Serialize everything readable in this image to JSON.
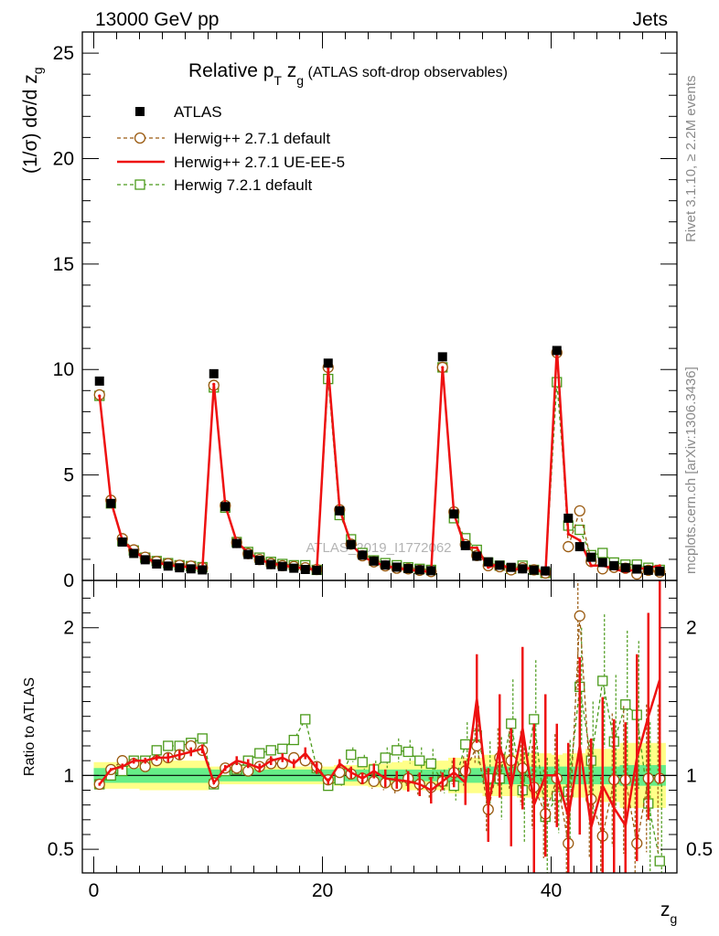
{
  "header": {
    "left": "13000 GeV pp",
    "right": "Jets"
  },
  "title": {
    "main": "Relative p",
    "sub_t": "T",
    "mid": " z",
    "sub_g": "g",
    "tail": " (ATLAS soft-drop observables)"
  },
  "side_labels": {
    "rivet": "Rivet 3.1.10, ≥ 2.2M events",
    "mcplots": "mcplots.cern.ch [arXiv:1306.3436]"
  },
  "watermark": "ATLAS_2019_I1772062",
  "y_label_main": "(1/σ) dσ/d z",
  "y_label_main_sub": "g",
  "y_label_ratio": "Ratio to ATLAS",
  "x_label": "z",
  "x_label_sub": "g",
  "legend": [
    {
      "label": "ATLAS",
      "marker": "square-filled"
    },
    {
      "label": "Herwig++ 2.7.1 default",
      "marker": "circle-open"
    },
    {
      "label": "Herwig++ 2.7.1 UE-EE-5",
      "marker": "line"
    },
    {
      "label": "Herwig 7.2.1 default",
      "marker": "square-open"
    }
  ],
  "chart_data": [
    {
      "type": "scatter",
      "panel": "main",
      "xlabel": "z_g",
      "ylabel": "(1/σ) dσ/d z_g",
      "xlim": [
        -1,
        51
      ],
      "ylim": [
        0,
        26
      ],
      "x_ticks": [
        "0",
        "20",
        "40"
      ],
      "y_ticks": [
        "0",
        "5",
        "10",
        "15",
        "20",
        "25"
      ],
      "x": [
        0.5,
        1.5,
        2.5,
        3.5,
        4.5,
        5.5,
        6.5,
        7.5,
        8.5,
        9.5,
        10.5,
        11.5,
        12.5,
        13.5,
        14.5,
        15.5,
        16.5,
        17.5,
        18.5,
        19.5,
        20.5,
        21.5,
        22.5,
        23.5,
        24.5,
        25.5,
        26.5,
        27.5,
        28.5,
        29.5,
        30.5,
        31.5,
        32.5,
        33.5,
        34.5,
        35.5,
        36.5,
        37.5,
        38.5,
        39.5,
        40.5,
        41.5,
        42.5,
        43.5,
        44.5,
        45.5,
        46.5,
        47.5,
        48.5,
        49.5
      ],
      "series": [
        {
          "name": "ATLAS",
          "color": "#000000",
          "values": [
            9.45,
            3.65,
            1.82,
            1.28,
            0.98,
            0.78,
            0.68,
            0.6,
            0.55,
            0.5,
            9.8,
            3.5,
            1.75,
            1.23,
            0.95,
            0.75,
            0.66,
            0.58,
            0.52,
            0.48,
            10.3,
            3.3,
            1.7,
            1.2,
            0.92,
            0.73,
            0.63,
            0.56,
            0.5,
            0.46,
            10.6,
            3.15,
            1.65,
            1.15,
            0.88,
            0.72,
            0.62,
            0.55,
            0.49,
            0.45,
            10.9,
            2.95,
            1.6,
            1.1,
            0.85,
            0.7,
            0.6,
            0.54,
            0.48,
            0.44
          ]
        },
        {
          "name": "Herwig++ 2.7.1 default",
          "color": "#9a5a10",
          "values": [
            8.8,
            3.8,
            1.98,
            1.45,
            1.1,
            0.9,
            0.8,
            0.72,
            0.68,
            0.6,
            9.25,
            3.55,
            1.8,
            1.27,
            0.99,
            0.8,
            0.7,
            0.66,
            0.6,
            0.52,
            10.1,
            3.35,
            1.72,
            1.17,
            0.88,
            0.69,
            0.58,
            0.55,
            0.48,
            0.42,
            10.1,
            3.25,
            1.7,
            1.18,
            0.7,
            0.65,
            0.5,
            0.6,
            0.5,
            0.35,
            10.8,
            1.6,
            3.3,
            0.9,
            0.55,
            0.62,
            0.58,
            0.3,
            0.48,
            0.4
          ]
        },
        {
          "name": "Herwig++ 2.7.1 UE-EE-5",
          "color": "#ee1111",
          "values": [
            8.75,
            3.75,
            1.9,
            1.35,
            1.05,
            0.85,
            0.73,
            0.66,
            0.63,
            0.55,
            9.3,
            3.55,
            1.83,
            1.32,
            0.99,
            0.8,
            0.73,
            0.62,
            0.58,
            0.5,
            10.05,
            3.38,
            1.73,
            1.13,
            0.87,
            0.69,
            0.58,
            0.51,
            0.45,
            0.41,
            10.1,
            3.15,
            1.55,
            1.55,
            0.62,
            0.8,
            0.52,
            0.55,
            0.6,
            0.3,
            11.0,
            2.2,
            1.9,
            0.7,
            0.7,
            0.55,
            0.4,
            0.55,
            0.6,
            0.7
          ]
        },
        {
          "name": "Herwig 7.2.1 default",
          "color": "#4a9a1a",
          "values": [
            8.75,
            3.65,
            1.87,
            1.42,
            1.08,
            0.92,
            0.82,
            0.72,
            0.68,
            0.63,
            9.15,
            3.45,
            1.82,
            1.35,
            1.08,
            0.88,
            0.78,
            0.72,
            0.72,
            0.5,
            9.55,
            3.1,
            1.95,
            1.3,
            0.95,
            0.82,
            0.72,
            0.62,
            0.55,
            0.5,
            10.1,
            2.95,
            2.0,
            1.45,
            0.85,
            0.7,
            0.55,
            0.7,
            0.5,
            0.35,
            9.4,
            2.6,
            2.4,
            1.2,
            1.3,
            0.85,
            0.75,
            0.75,
            0.6,
            0.5
          ]
        }
      ]
    },
    {
      "type": "scatter",
      "panel": "ratio",
      "xlabel": "z_g",
      "ylabel": "Ratio to ATLAS",
      "xlim": [
        -1,
        51
      ],
      "ylim": [
        0.34,
        2.32
      ],
      "y_ticks": [
        "0.5",
        "1",
        "2"
      ],
      "x": [
        0.5,
        1.5,
        2.5,
        3.5,
        4.5,
        5.5,
        6.5,
        7.5,
        8.5,
        9.5,
        10.5,
        11.5,
        12.5,
        13.5,
        14.5,
        15.5,
        16.5,
        17.5,
        18.5,
        19.5,
        20.5,
        21.5,
        22.5,
        23.5,
        24.5,
        25.5,
        26.5,
        27.5,
        28.5,
        29.5,
        30.5,
        31.5,
        32.5,
        33.5,
        34.5,
        35.5,
        36.5,
        37.5,
        38.5,
        39.5,
        40.5,
        41.5,
        42.5,
        43.5,
        44.5,
        45.5,
        46.5,
        47.5,
        48.5,
        49.5
      ],
      "bands": {
        "inner_color": "#66ee88",
        "outer_color": "#ffff88",
        "inner_halfwidth": [
          0.05,
          0.05,
          0.05,
          0.05,
          0.05,
          0.05,
          0.05,
          0.05,
          0.05,
          0.05,
          0.04,
          0.04,
          0.04,
          0.04,
          0.04,
          0.04,
          0.04,
          0.04,
          0.04,
          0.04,
          0.04,
          0.04,
          0.04,
          0.04,
          0.04,
          0.04,
          0.04,
          0.04,
          0.04,
          0.04,
          0.04,
          0.05,
          0.05,
          0.05,
          0.06,
          0.06,
          0.06,
          0.06,
          0.06,
          0.06,
          0.06,
          0.06,
          0.06,
          0.06,
          0.06,
          0.06,
          0.07,
          0.07,
          0.07,
          0.07
        ],
        "outer_halfwidth": [
          0.09,
          0.09,
          0.09,
          0.09,
          0.1,
          0.1,
          0.1,
          0.1,
          0.1,
          0.1,
          0.06,
          0.06,
          0.06,
          0.06,
          0.06,
          0.06,
          0.06,
          0.06,
          0.06,
          0.06,
          0.06,
          0.07,
          0.07,
          0.07,
          0.08,
          0.08,
          0.09,
          0.1,
          0.1,
          0.1,
          0.1,
          0.12,
          0.12,
          0.12,
          0.14,
          0.14,
          0.14,
          0.15,
          0.15,
          0.15,
          0.14,
          0.15,
          0.15,
          0.18,
          0.18,
          0.18,
          0.22,
          0.22,
          0.22,
          0.22
        ]
      },
      "series": [
        {
          "name": "Herwig++ 2.7.1 default",
          "color": "#9a5a10",
          "values": [
            0.94,
            1.04,
            1.1,
            1.08,
            1.06,
            1.1,
            1.12,
            1.14,
            1.2,
            1.17,
            0.95,
            1.05,
            1.05,
            1.03,
            1.06,
            1.08,
            1.08,
            1.12,
            1.1,
            1.06,
            0.97,
            1.02,
            1.01,
            0.98,
            0.96,
            0.95,
            0.93,
            0.98,
            0.94,
            0.92,
            0.96,
            1.02,
            1.03,
            1.2,
            0.77,
            1.12,
            1.1,
            1.05,
            0.92,
            0.74,
            0.98,
            0.54,
            2.08,
            0.84,
            0.59,
            0.97,
            0.97,
            0.54,
            0.98,
            0.98
          ],
          "err": [
            0.02,
            0.02,
            0.02,
            0.02,
            0.02,
            0.03,
            0.03,
            0.03,
            0.03,
            0.03,
            0.02,
            0.02,
            0.02,
            0.03,
            0.03,
            0.03,
            0.03,
            0.03,
            0.03,
            0.03,
            0.03,
            0.03,
            0.04,
            0.04,
            0.05,
            0.05,
            0.06,
            0.06,
            0.07,
            0.07,
            0.07,
            0.08,
            0.1,
            0.12,
            0.15,
            0.2,
            0.2,
            0.25,
            0.28,
            0.3,
            0.3,
            0.4,
            0.5,
            0.4,
            0.4,
            0.45,
            0.5,
            0.5,
            0.5,
            0.5
          ]
        },
        {
          "name": "Herwig++ 2.7.1 UE-EE-5",
          "color": "#ee1111",
          "values": [
            0.94,
            1.04,
            1.06,
            1.1,
            1.1,
            1.12,
            1.12,
            1.14,
            1.16,
            1.18,
            0.95,
            1.05,
            1.1,
            1.08,
            1.05,
            1.1,
            1.12,
            1.08,
            1.15,
            1.05,
            0.96,
            1.08,
            1.02,
            0.98,
            1.03,
            0.98,
            0.97,
            0.96,
            0.94,
            0.9,
            0.96,
            1.02,
            0.95,
            1.52,
            0.8,
            1.2,
            0.92,
            1.32,
            0.8,
            1.0,
            1.0,
            0.72,
            1.2,
            0.65,
            0.93,
            0.78,
            0.66,
            1.12,
            1.4,
            1.65
          ],
          "err": [
            0.01,
            0.01,
            0.02,
            0.02,
            0.02,
            0.02,
            0.03,
            0.03,
            0.03,
            0.03,
            0.01,
            0.02,
            0.03,
            0.03,
            0.03,
            0.03,
            0.03,
            0.03,
            0.04,
            0.04,
            0.02,
            0.03,
            0.04,
            0.04,
            0.05,
            0.06,
            0.06,
            0.07,
            0.08,
            0.09,
            0.06,
            0.1,
            0.15,
            0.3,
            0.25,
            0.35,
            0.4,
            0.55,
            0.55,
            0.55,
            0.35,
            0.5,
            0.6,
            0.6,
            0.6,
            0.6,
            0.7,
            0.7,
            0.7,
            0.7
          ]
        },
        {
          "name": "Herwig 7.2.1 default",
          "color": "#4a9a1a",
          "values": [
            0.94,
            1.0,
            1.03,
            1.1,
            1.1,
            1.17,
            1.2,
            1.2,
            1.22,
            1.25,
            0.94,
            1.03,
            1.04,
            1.1,
            1.15,
            1.17,
            1.18,
            1.24,
            1.38,
            1.05,
            0.93,
            0.97,
            1.14,
            1.09,
            1.04,
            1.12,
            1.17,
            1.16,
            1.1,
            1.08,
            0.96,
            0.93,
            1.21,
            1.27,
            0.98,
            0.98,
            1.35,
            0.9,
            1.38,
            0.72,
            0.86,
            0.89,
            1.6,
            1.1,
            1.64,
            1.23,
            1.48,
            1.41,
            0.81,
            0.42
          ],
          "err": [
            0.02,
            0.02,
            0.02,
            0.02,
            0.03,
            0.03,
            0.03,
            0.03,
            0.03,
            0.03,
            0.02,
            0.02,
            0.03,
            0.03,
            0.03,
            0.03,
            0.03,
            0.03,
            0.03,
            0.04,
            0.02,
            0.04,
            0.05,
            0.05,
            0.06,
            0.07,
            0.08,
            0.08,
            0.09,
            0.1,
            0.08,
            0.1,
            0.15,
            0.2,
            0.25,
            0.28,
            0.3,
            0.35,
            0.4,
            0.4,
            0.25,
            0.35,
            0.4,
            0.4,
            0.45,
            0.45,
            0.5,
            0.5,
            0.55,
            0.55
          ]
        }
      ]
    }
  ]
}
